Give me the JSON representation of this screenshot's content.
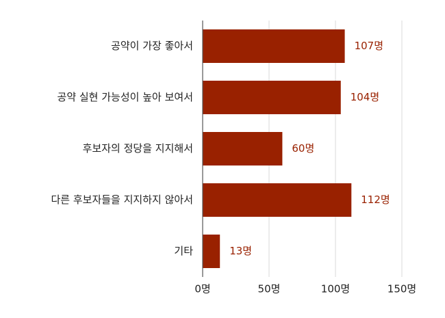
{
  "chart_data": {
    "type": "bar",
    "orientation": "horizontal",
    "title": "",
    "xlabel": "",
    "ylabel": "",
    "unit_suffix": "명",
    "categories": [
      "공약이 가장 좋아서",
      "공약 실현 가능성이 높아 보여서",
      "후보자의 정당을 지지해서",
      "다른 후보자들을 지지하지 않아서",
      "기타"
    ],
    "values": [
      107,
      104,
      60,
      112,
      13
    ],
    "value_labels": [
      "107명",
      "104명",
      "60명",
      "112명",
      "13명"
    ],
    "xlim": [
      0,
      150
    ],
    "x_ticks": [
      0,
      50,
      100,
      150
    ],
    "x_tick_labels": [
      "0명",
      "50명",
      "100명",
      "150명"
    ],
    "grid": true,
    "legend": "none",
    "colors": {
      "bar": "#992100",
      "value_label": "#992100",
      "grid": "#d9d9d9"
    }
  }
}
